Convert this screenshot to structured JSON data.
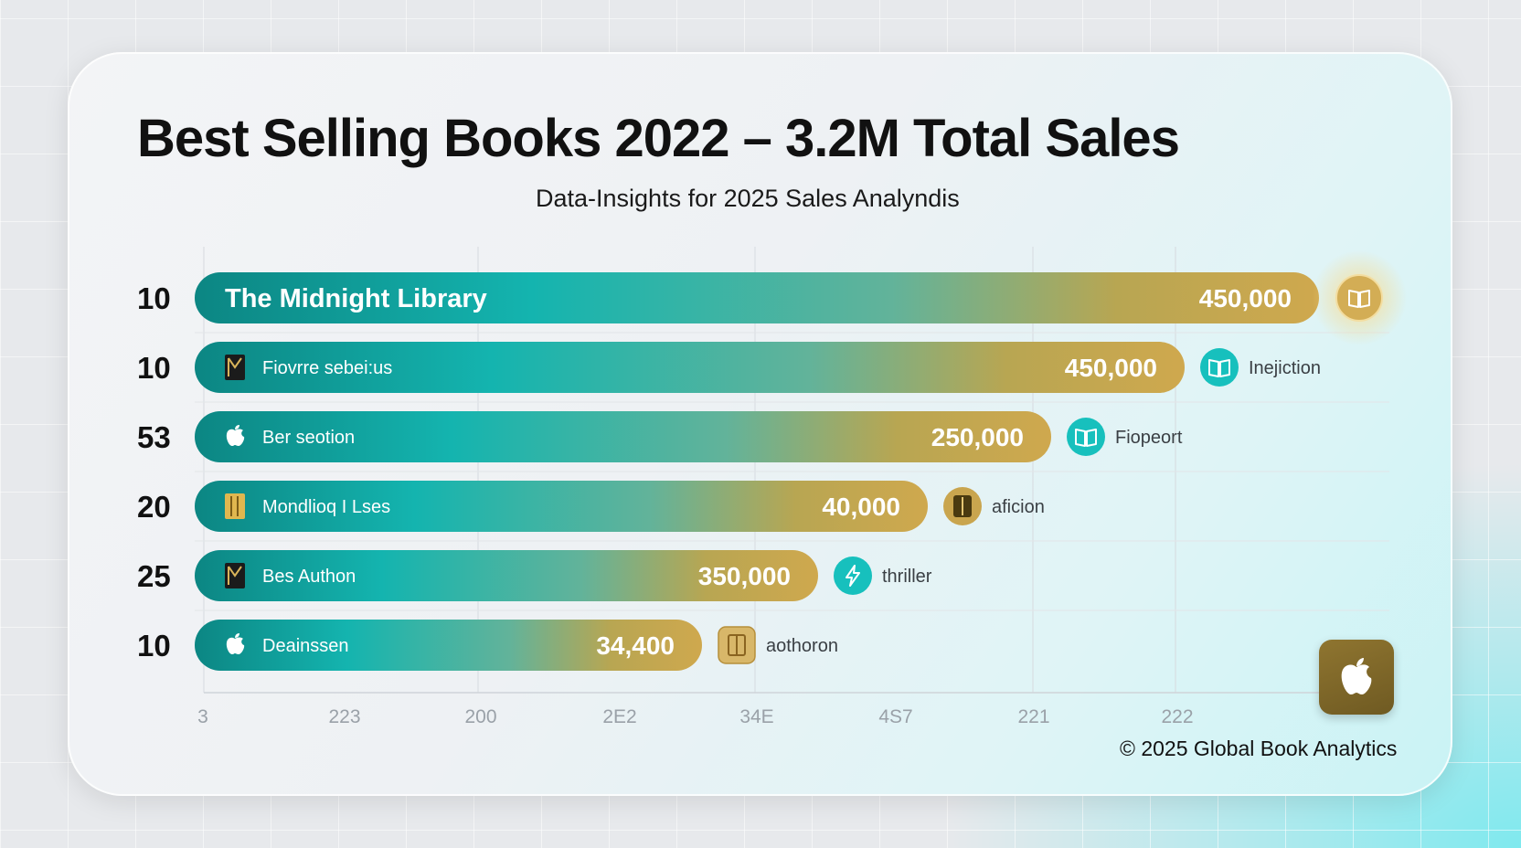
{
  "header": {
    "title": "Best Selling Books 2022 – 3.2M Total Sales",
    "subtitle": "Data-Insights for 2025 Sales Analyndis"
  },
  "footer": {
    "copyright": "© 2025 Global Book Analytics"
  },
  "logo_icon": "apple-icon",
  "colors": {
    "bar_start": "#0f8f8c",
    "bar_mid": "#14b7b2",
    "bar_end": "#c7a44c",
    "teal_badge": "#17c3c0",
    "gold_badge": "#c9a54e"
  },
  "chart_data": {
    "type": "bar",
    "orientation": "horizontal",
    "title": "Best Selling Books 2022 – 3.2M Total Sales",
    "subtitle": "Data-Insights for 2025 Sales Analyndis",
    "x_ticks": [
      "3",
      "223",
      "200",
      "2E2",
      "34E",
      "4S7",
      "221",
      "222"
    ],
    "grid": true,
    "rows": [
      {
        "rank": "10",
        "label": "The Midnight Library",
        "value_label": "450,000",
        "value": 450000,
        "book_icon": "",
        "genre": "",
        "genre_icon": "open-book-icon",
        "badge": "gold-glow"
      },
      {
        "rank": "10",
        "label": "Fiovrre sebei:us",
        "value_label": "450,000",
        "value": 450000,
        "book_icon": "book-dark-icon",
        "genre": "Inejiction",
        "genre_icon": "open-book-icon",
        "badge": "teal"
      },
      {
        "rank": "53",
        "label": "Ber seotion",
        "value_label": "250,000",
        "value": 250000,
        "book_icon": "apple-icon",
        "genre": "Fiopeort",
        "genre_icon": "open-book-icon",
        "badge": "teal"
      },
      {
        "rank": "20",
        "label": "Mondlioq I Lses",
        "value_label": "40,000",
        "value": 40000,
        "book_icon": "book-gold-icon",
        "genre": "aficion",
        "genre_icon": "book-icon",
        "badge": "gold"
      },
      {
        "rank": "25",
        "label": "Bes Authon",
        "value_label": "350,000",
        "value": 350000,
        "book_icon": "book-dark-icon",
        "genre": "thriller",
        "genre_icon": "lightning-icon",
        "badge": "teal"
      },
      {
        "rank": "10",
        "label": "Deainssen",
        "value_label": "34,400",
        "value": 34400,
        "book_icon": "apple-icon",
        "genre": "aothoron",
        "genre_icon": "book-icon",
        "badge": "gold-square"
      }
    ]
  }
}
